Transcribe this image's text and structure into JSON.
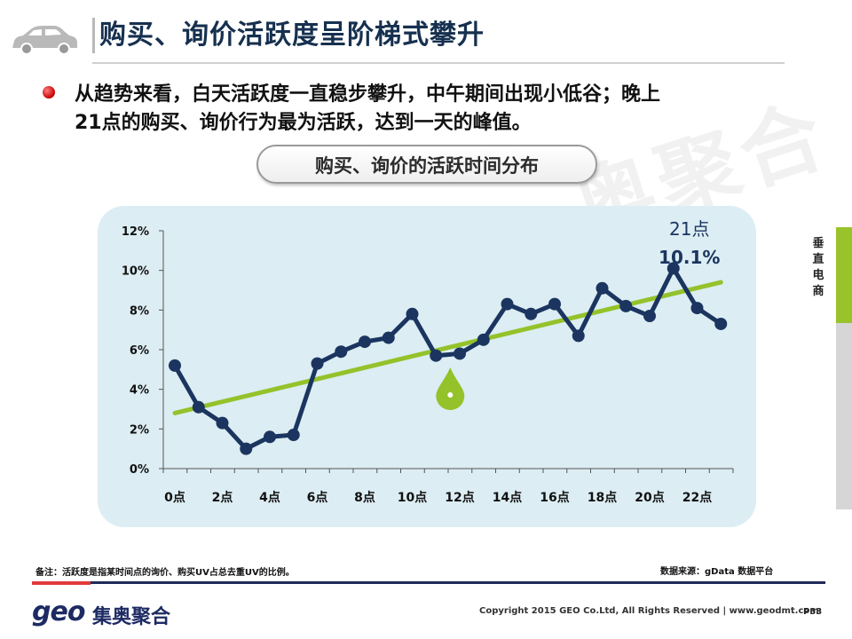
{
  "header": {
    "title": "购买、询价活跃度呈阶梯式攀升"
  },
  "body": {
    "line1": "从趋势来看，白天活跃度一直稳步攀升，中午期间出现小低谷；晚上",
    "line2": "21点的购买、询价行为最为活跃，达到一天的峰值。"
  },
  "side_tab": [
    "垂",
    "直",
    "电",
    "商"
  ],
  "watermark": "奥聚合",
  "colors": {
    "line": "#1b3560",
    "trend": "#94c22a",
    "panel": "#dcedf3",
    "title": "#16304f"
  },
  "icons": {
    "car": "car-icon",
    "drop": "water-drop-icon"
  },
  "chart_data": {
    "type": "line",
    "title": "购买、询价的活跃时间分布",
    "x": [
      0,
      1,
      2,
      3,
      4,
      5,
      6,
      7,
      8,
      9,
      10,
      11,
      12,
      13,
      14,
      15,
      16,
      17,
      18,
      19,
      20,
      21,
      22,
      23
    ],
    "xtick_labels": [
      "0点",
      "2点",
      "4点",
      "6点",
      "8点",
      "10点",
      "12点",
      "14点",
      "16点",
      "18点",
      "20点",
      "22点"
    ],
    "xtick_values": [
      0,
      2,
      4,
      6,
      8,
      10,
      12,
      14,
      16,
      18,
      20,
      22
    ],
    "series": [
      {
        "values": [
          5.2,
          3.1,
          2.3,
          1.0,
          1.6,
          1.7,
          5.3,
          5.9,
          6.4,
          6.6,
          7.8,
          5.7,
          5.8,
          6.5,
          8.3,
          7.8,
          8.3,
          6.7,
          9.1,
          8.2,
          7.7,
          10.1,
          8.1,
          7.3
        ]
      }
    ],
    "trendline": {
      "x": [
        0,
        23
      ],
      "y": [
        2.8,
        9.4
      ]
    },
    "ylim": [
      0,
      12
    ],
    "ytick_values": [
      0,
      2,
      4,
      6,
      8,
      10,
      12
    ],
    "ytick_labels": [
      "0%",
      "2%",
      "4%",
      "6%",
      "8%",
      "10%",
      "12%"
    ],
    "annotation": {
      "x": 21,
      "label_hour": "21点",
      "label_value": "10.1%"
    },
    "grid": false,
    "legend": "none"
  },
  "footer": {
    "note": "备注：活跃度是指某时间点的询价、购买UV占总去重UV的比例。",
    "source": "数据来源：gData  数据平台",
    "logo_geo": "geo",
    "logo_cn": "集奥聚合",
    "copyright": "Copyright 2015 GEO Co.Ltd, All Rights Reserved   |   www.geodmt.com",
    "page": "P33"
  }
}
